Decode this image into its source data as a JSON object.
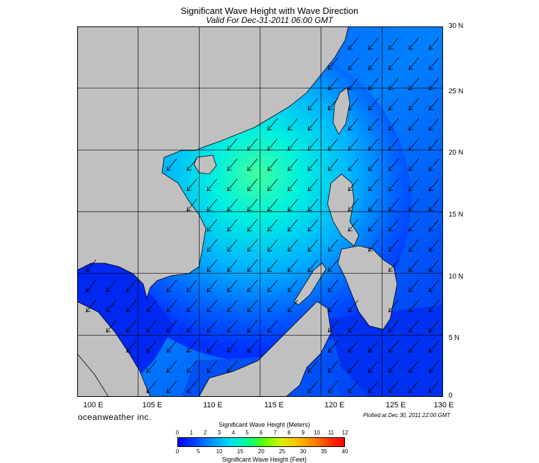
{
  "title": "Significant Wave Height with Wave Direction",
  "subtitle": "Valid For Dec-31-2011 06:00 GMT",
  "map": {
    "lat_labels": [
      "30 N",
      "25 N",
      "20 N",
      "15 N",
      "10 N",
      "5 N",
      "0"
    ],
    "lon_labels": [
      "100 E",
      "105 E",
      "110 E",
      "115 E",
      "120 E",
      "125 E",
      "130 E"
    ],
    "lat_range": [
      0,
      30
    ],
    "lon_range": [
      100,
      130
    ],
    "grid": true,
    "land_color": "#c0c0c0",
    "ocean_colors": {
      "calm": "#0020ff",
      "low": "#0070ff",
      "mid": "#00c0ff",
      "high": "#00ffd0",
      "peak": "#40ffa0"
    },
    "wave_direction": "toward southwest"
  },
  "brand": "oceanweather inc.",
  "plotted": "Plotted at Dec 30, 2011 22:00 GMT",
  "colorbar": {
    "title_meters": "Significant Wave Height (Meters)",
    "title_feet": "Significant Wave Height (Feet)",
    "meters_ticks": [
      "0",
      "1",
      "2",
      "3",
      "4",
      "5",
      "6",
      "7",
      "8",
      "9",
      "10",
      "11",
      "12"
    ],
    "feet_ticks": [
      "0",
      "5",
      "10",
      "15",
      "20",
      "25",
      "30",
      "35",
      "40"
    ],
    "colors": [
      "#0000ff",
      "#0050ff",
      "#00a0ff",
      "#00e0f0",
      "#00ff90",
      "#60ff00",
      "#d8f000",
      "#ffc000",
      "#ff8000",
      "#ff3000",
      "#ff0000"
    ]
  }
}
